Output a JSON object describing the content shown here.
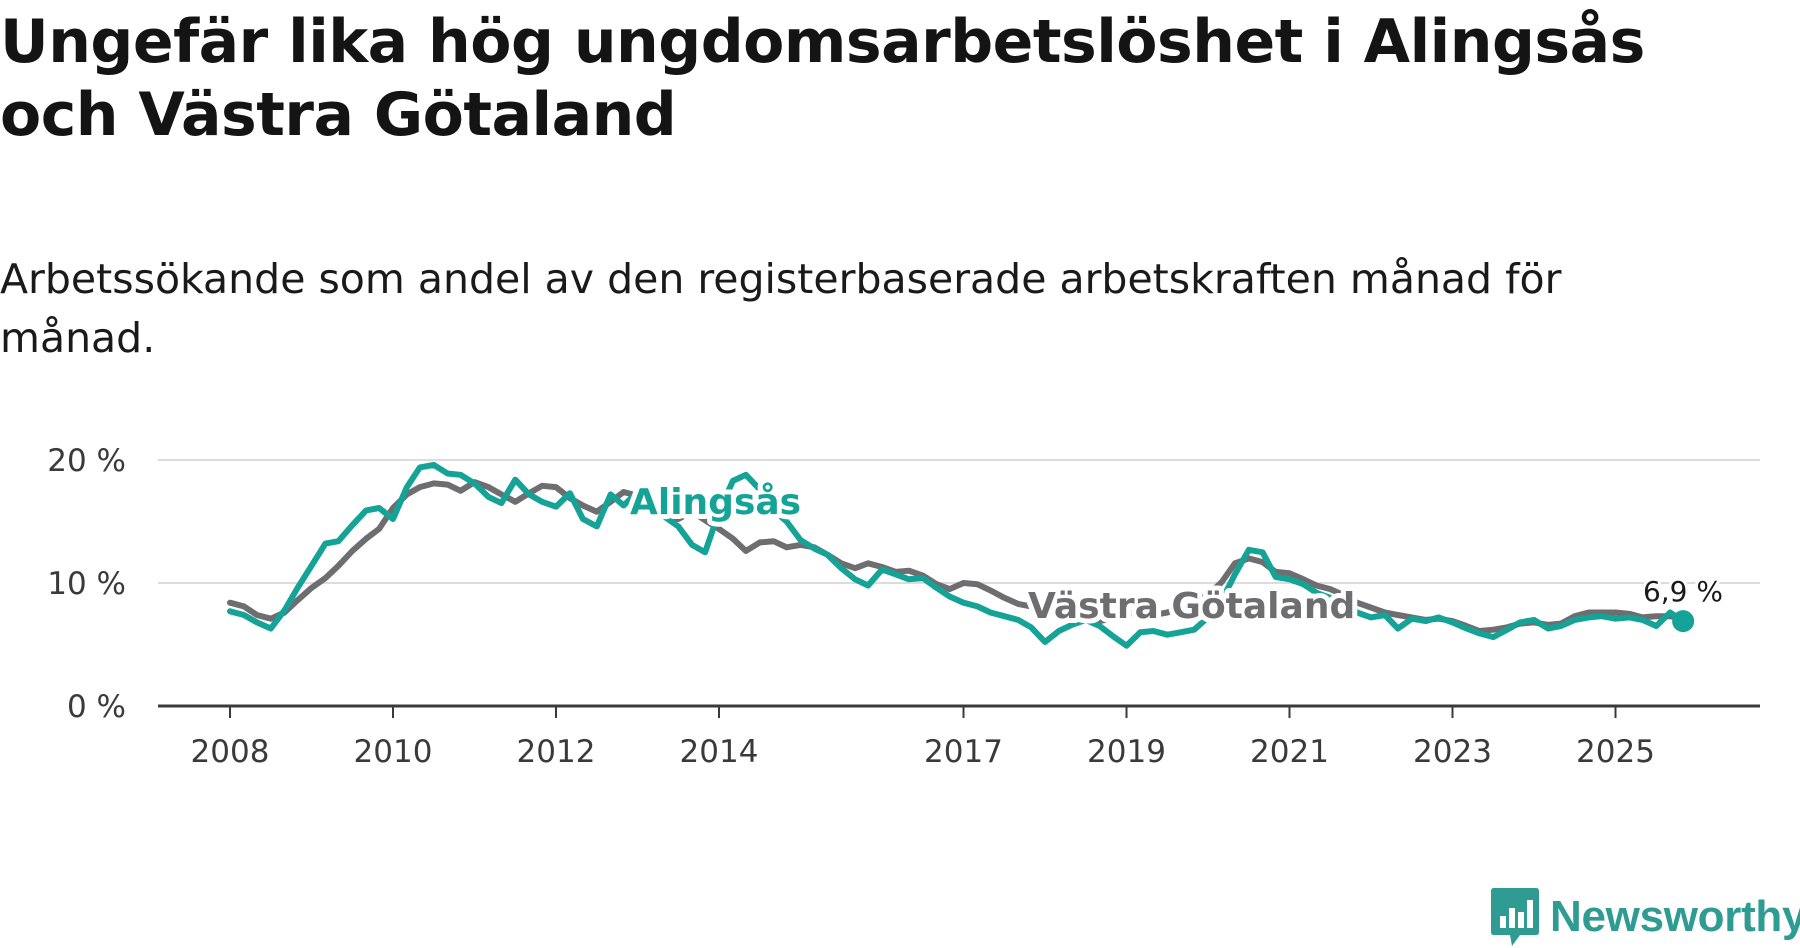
{
  "title": "Ungefär lika hög ungdomsarbetslöshet i Alingsås och Västra Götaland",
  "subtitle": "Arbetssökande som andel av den registerbaserade arbetskraften månad för månad.",
  "logo": {
    "name": "Newsworthy",
    "icon": "newsworthy-logo-icon"
  },
  "colors": {
    "alingsas": "#14a396",
    "vastra": "#6e6d70",
    "grid": "#dcdcdc",
    "axis": "#3a3a3a"
  },
  "chart_data": {
    "type": "line",
    "title": "Ungefär lika hög ungdomsarbetslöshet i Alingsås och Västra Götaland",
    "xlabel": "",
    "ylabel": "",
    "ylim": [
      0,
      20
    ],
    "xlim": [
      2007.4,
      2026.75
    ],
    "y_ticks": [
      0,
      10,
      20
    ],
    "y_tick_labels": [
      "0 %",
      "10 %",
      "20 %"
    ],
    "x_ticks": [
      2008,
      2010,
      2012,
      2014,
      2017,
      2019,
      2021,
      2023,
      2025
    ],
    "x_tick_labels": [
      "2008",
      "2010",
      "2012",
      "2014",
      "2017",
      "2019",
      "2021",
      "2023",
      "2025"
    ],
    "last_value_label": "6,9 %",
    "series": [
      {
        "name": "Västra Götaland",
        "points": [
          [
            2008.0,
            8.4
          ],
          [
            2008.17,
            8.1
          ],
          [
            2008.33,
            7.4
          ],
          [
            2008.5,
            7.1
          ],
          [
            2008.67,
            7.6
          ],
          [
            2008.83,
            8.6
          ],
          [
            2009.0,
            9.6
          ],
          [
            2009.17,
            10.4
          ],
          [
            2009.33,
            11.4
          ],
          [
            2009.5,
            12.6
          ],
          [
            2009.67,
            13.6
          ],
          [
            2009.83,
            14.4
          ],
          [
            2010.0,
            16.1
          ],
          [
            2010.17,
            17.2
          ],
          [
            2010.33,
            17.8
          ],
          [
            2010.5,
            18.1
          ],
          [
            2010.67,
            18.0
          ],
          [
            2010.83,
            17.5
          ],
          [
            2011.0,
            18.2
          ],
          [
            2011.17,
            17.8
          ],
          [
            2011.33,
            17.2
          ],
          [
            2011.5,
            16.6
          ],
          [
            2011.67,
            17.3
          ],
          [
            2011.83,
            17.9
          ],
          [
            2012.0,
            17.8
          ],
          [
            2012.17,
            16.9
          ],
          [
            2012.33,
            16.3
          ],
          [
            2012.5,
            15.8
          ],
          [
            2012.67,
            16.6
          ],
          [
            2012.83,
            17.4
          ],
          [
            2013.0,
            17.1
          ],
          [
            2013.17,
            16.3
          ],
          [
            2013.33,
            15.6
          ],
          [
            2013.5,
            15.2
          ],
          [
            2013.67,
            15.8
          ],
          [
            2013.83,
            15.1
          ],
          [
            2014.0,
            14.4
          ],
          [
            2014.17,
            13.6
          ],
          [
            2014.33,
            12.6
          ],
          [
            2014.5,
            13.3
          ],
          [
            2014.67,
            13.4
          ],
          [
            2014.83,
            12.9
          ],
          [
            2015.0,
            13.1
          ],
          [
            2015.17,
            12.9
          ],
          [
            2015.33,
            12.3
          ],
          [
            2015.5,
            11.6
          ],
          [
            2015.67,
            11.2
          ],
          [
            2015.83,
            11.6
          ],
          [
            2016.0,
            11.3
          ],
          [
            2016.17,
            10.9
          ],
          [
            2016.33,
            11.0
          ],
          [
            2016.5,
            10.6
          ],
          [
            2016.67,
            9.9
          ],
          [
            2016.83,
            9.5
          ],
          [
            2017.0,
            10.0
          ],
          [
            2017.17,
            9.9
          ],
          [
            2017.33,
            9.4
          ],
          [
            2017.5,
            8.8
          ],
          [
            2017.67,
            8.3
          ],
          [
            2017.83,
            8.1
          ],
          [
            2018.0,
            8.4
          ],
          [
            2018.17,
            8.0
          ],
          [
            2018.33,
            7.6
          ],
          [
            2018.5,
            7.2
          ],
          [
            2018.67,
            6.9
          ],
          [
            2018.83,
            7.1
          ],
          [
            2019.0,
            7.5
          ],
          [
            2019.17,
            7.6
          ],
          [
            2019.33,
            7.4
          ],
          [
            2019.5,
            7.6
          ],
          [
            2019.67,
            8.1
          ],
          [
            2019.83,
            8.7
          ],
          [
            2020.0,
            9.0
          ],
          [
            2020.17,
            10.1
          ],
          [
            2020.33,
            11.6
          ],
          [
            2020.5,
            12.0
          ],
          [
            2020.67,
            11.7
          ],
          [
            2020.83,
            10.9
          ],
          [
            2021.0,
            10.8
          ],
          [
            2021.17,
            10.3
          ],
          [
            2021.33,
            9.8
          ],
          [
            2021.5,
            9.5
          ],
          [
            2021.67,
            9.0
          ],
          [
            2021.83,
            8.4
          ],
          [
            2022.0,
            8.0
          ],
          [
            2022.17,
            7.6
          ],
          [
            2022.33,
            7.4
          ],
          [
            2022.5,
            7.2
          ],
          [
            2022.67,
            7.0
          ],
          [
            2022.83,
            7.1
          ],
          [
            2023.0,
            6.9
          ],
          [
            2023.17,
            6.5
          ],
          [
            2023.33,
            6.1
          ],
          [
            2023.5,
            6.2
          ],
          [
            2023.67,
            6.4
          ],
          [
            2023.83,
            6.7
          ],
          [
            2024.0,
            6.8
          ],
          [
            2024.17,
            6.6
          ],
          [
            2024.33,
            6.7
          ],
          [
            2024.5,
            7.3
          ],
          [
            2024.67,
            7.6
          ],
          [
            2024.83,
            7.6
          ],
          [
            2025.0,
            7.6
          ],
          [
            2025.17,
            7.5
          ],
          [
            2025.33,
            7.2
          ],
          [
            2025.5,
            7.3
          ],
          [
            2025.67,
            7.3
          ],
          [
            2025.83,
            7.1
          ]
        ]
      },
      {
        "name": "Alingsås",
        "points": [
          [
            2008.0,
            7.7
          ],
          [
            2008.17,
            7.4
          ],
          [
            2008.33,
            6.8
          ],
          [
            2008.5,
            6.3
          ],
          [
            2008.67,
            7.8
          ],
          [
            2008.83,
            9.6
          ],
          [
            2009.0,
            11.4
          ],
          [
            2009.17,
            13.2
          ],
          [
            2009.33,
            13.4
          ],
          [
            2009.5,
            14.7
          ],
          [
            2009.67,
            15.9
          ],
          [
            2009.83,
            16.1
          ],
          [
            2010.0,
            15.2
          ],
          [
            2010.17,
            17.8
          ],
          [
            2010.33,
            19.4
          ],
          [
            2010.5,
            19.6
          ],
          [
            2010.67,
            18.9
          ],
          [
            2010.83,
            18.8
          ],
          [
            2011.0,
            18.1
          ],
          [
            2011.17,
            17.0
          ],
          [
            2011.33,
            16.5
          ],
          [
            2011.5,
            18.4
          ],
          [
            2011.67,
            17.2
          ],
          [
            2011.83,
            16.6
          ],
          [
            2012.0,
            16.2
          ],
          [
            2012.17,
            17.3
          ],
          [
            2012.33,
            15.2
          ],
          [
            2012.5,
            14.6
          ],
          [
            2012.67,
            17.2
          ],
          [
            2012.83,
            16.3
          ],
          [
            2013.0,
            17.4
          ],
          [
            2013.17,
            16.6
          ],
          [
            2013.33,
            15.4
          ],
          [
            2013.5,
            14.6
          ],
          [
            2013.67,
            13.1
          ],
          [
            2013.83,
            12.5
          ],
          [
            2014.0,
            15.8
          ],
          [
            2014.17,
            18.3
          ],
          [
            2014.33,
            18.8
          ],
          [
            2014.5,
            17.6
          ],
          [
            2014.67,
            15.9
          ],
          [
            2014.83,
            15.0
          ],
          [
            2015.0,
            13.5
          ],
          [
            2015.17,
            12.8
          ],
          [
            2015.33,
            12.3
          ],
          [
            2015.5,
            11.2
          ],
          [
            2015.67,
            10.3
          ],
          [
            2015.83,
            9.8
          ],
          [
            2016.0,
            11.1
          ],
          [
            2016.17,
            10.7
          ],
          [
            2016.33,
            10.3
          ],
          [
            2016.5,
            10.4
          ],
          [
            2016.67,
            9.6
          ],
          [
            2016.83,
            8.9
          ],
          [
            2017.0,
            8.4
          ],
          [
            2017.17,
            8.1
          ],
          [
            2017.33,
            7.6
          ],
          [
            2017.5,
            7.3
          ],
          [
            2017.67,
            7.0
          ],
          [
            2017.83,
            6.4
          ],
          [
            2018.0,
            5.2
          ],
          [
            2018.17,
            6.1
          ],
          [
            2018.33,
            6.6
          ],
          [
            2018.5,
            7.0
          ],
          [
            2018.67,
            6.5
          ],
          [
            2018.83,
            5.7
          ],
          [
            2019.0,
            4.9
          ],
          [
            2019.17,
            6.0
          ],
          [
            2019.33,
            6.1
          ],
          [
            2019.5,
            5.8
          ],
          [
            2019.67,
            6.0
          ],
          [
            2019.83,
            6.2
          ],
          [
            2020.0,
            7.2
          ],
          [
            2020.17,
            8.6
          ],
          [
            2020.33,
            10.7
          ],
          [
            2020.5,
            12.7
          ],
          [
            2020.67,
            12.5
          ],
          [
            2020.83,
            10.5
          ],
          [
            2021.0,
            10.3
          ],
          [
            2021.17,
            9.9
          ],
          [
            2021.33,
            9.2
          ],
          [
            2021.5,
            8.8
          ],
          [
            2021.67,
            8.3
          ],
          [
            2021.83,
            7.6
          ],
          [
            2022.0,
            7.2
          ],
          [
            2022.17,
            7.4
          ],
          [
            2022.33,
            6.3
          ],
          [
            2022.5,
            7.1
          ],
          [
            2022.67,
            6.9
          ],
          [
            2022.83,
            7.2
          ],
          [
            2023.0,
            6.8
          ],
          [
            2023.17,
            6.3
          ],
          [
            2023.33,
            5.9
          ],
          [
            2023.5,
            5.6
          ],
          [
            2023.67,
            6.2
          ],
          [
            2023.83,
            6.8
          ],
          [
            2024.0,
            7.0
          ],
          [
            2024.17,
            6.3
          ],
          [
            2024.33,
            6.5
          ],
          [
            2024.5,
            7.0
          ],
          [
            2024.67,
            7.2
          ],
          [
            2024.83,
            7.3
          ],
          [
            2025.0,
            7.1
          ],
          [
            2025.17,
            7.2
          ],
          [
            2025.33,
            7.0
          ],
          [
            2025.5,
            6.5
          ],
          [
            2025.67,
            7.6
          ],
          [
            2025.83,
            6.9
          ]
        ]
      }
    ]
  }
}
